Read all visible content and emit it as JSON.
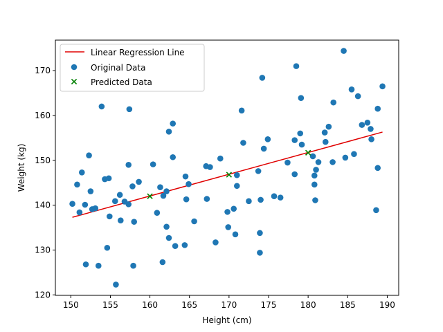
{
  "chart_data": {
    "type": "scatter",
    "xlabel": "Height (cm)",
    "ylabel": "Weight (kg)",
    "xlim": [
      148.05,
      191.45
    ],
    "ylim": [
      119.9,
      176.8
    ],
    "xticks": [
      150,
      155,
      160,
      165,
      170,
      175,
      180,
      185,
      190
    ],
    "yticks": [
      120,
      130,
      140,
      150,
      160,
      170
    ],
    "grid": false,
    "legend": {
      "position": "top-left",
      "entries": [
        "Linear Regression Line",
        "Original Data",
        "Predicted Data"
      ]
    },
    "series": [
      {
        "name": "Linear Regression Line",
        "kind": "line",
        "color": "#e00000",
        "points": [
          [
            150.2,
            137.3
          ],
          [
            189.4,
            156.3
          ]
        ]
      },
      {
        "name": "Original Data",
        "kind": "scatter",
        "color": "#1f77b4",
        "points": [
          [
            150.2,
            140.3
          ],
          [
            150.8,
            144.6
          ],
          [
            151.1,
            138.4
          ],
          [
            151.4,
            147.3
          ],
          [
            151.8,
            140.1
          ],
          [
            151.9,
            126.8
          ],
          [
            152.3,
            151.1
          ],
          [
            152.5,
            143.1
          ],
          [
            152.7,
            139.1
          ],
          [
            153.1,
            139.3
          ],
          [
            153.5,
            126.5
          ],
          [
            153.9,
            162.0
          ],
          [
            154.3,
            145.8
          ],
          [
            154.6,
            130.5
          ],
          [
            154.8,
            146.0
          ],
          [
            154.9,
            137.5
          ],
          [
            155.6,
            140.9
          ],
          [
            155.7,
            122.3
          ],
          [
            156.2,
            142.3
          ],
          [
            156.3,
            136.6
          ],
          [
            156.8,
            140.8
          ],
          [
            157.3,
            140.2
          ],
          [
            157.3,
            149.0
          ],
          [
            157.4,
            161.4
          ],
          [
            157.8,
            144.2
          ],
          [
            157.9,
            126.5
          ],
          [
            158.0,
            136.3
          ],
          [
            158.6,
            145.2
          ],
          [
            160.4,
            149.1
          ],
          [
            160.9,
            138.3
          ],
          [
            161.3,
            144.0
          ],
          [
            161.6,
            127.3
          ],
          [
            161.7,
            142.1
          ],
          [
            162.1,
            143.1
          ],
          [
            162.1,
            135.2
          ],
          [
            162.4,
            132.7
          ],
          [
            162.4,
            156.4
          ],
          [
            162.9,
            158.2
          ],
          [
            162.9,
            150.7
          ],
          [
            163.2,
            130.9
          ],
          [
            164.4,
            131.1
          ],
          [
            164.5,
            146.4
          ],
          [
            164.6,
            141.3
          ],
          [
            164.9,
            144.7
          ],
          [
            165.6,
            136.4
          ],
          [
            167.1,
            148.7
          ],
          [
            167.2,
            141.4
          ],
          [
            167.6,
            148.5
          ],
          [
            168.3,
            131.7
          ],
          [
            168.9,
            150.4
          ],
          [
            169.8,
            138.5
          ],
          [
            169.9,
            135.1
          ],
          [
            170.6,
            139.2
          ],
          [
            170.8,
            133.5
          ],
          [
            171.0,
            146.7
          ],
          [
            171.0,
            144.3
          ],
          [
            171.6,
            161.1
          ],
          [
            171.8,
            153.9
          ],
          [
            172.5,
            140.9
          ],
          [
            173.7,
            147.6
          ],
          [
            173.9,
            129.4
          ],
          [
            173.9,
            133.8
          ],
          [
            174.0,
            141.2
          ],
          [
            174.2,
            168.4
          ],
          [
            174.4,
            152.6
          ],
          [
            174.9,
            154.7
          ],
          [
            175.7,
            142.0
          ],
          [
            176.5,
            141.7
          ],
          [
            177.4,
            149.5
          ],
          [
            178.3,
            146.9
          ],
          [
            178.3,
            154.5
          ],
          [
            178.5,
            171.0
          ],
          [
            179.0,
            156.0
          ],
          [
            179.1,
            163.9
          ],
          [
            179.2,
            153.5
          ],
          [
            180.6,
            150.9
          ],
          [
            180.8,
            146.6
          ],
          [
            180.8,
            144.6
          ],
          [
            180.9,
            141.1
          ],
          [
            181.0,
            147.9
          ],
          [
            181.3,
            149.6
          ],
          [
            182.1,
            156.2
          ],
          [
            182.2,
            154.1
          ],
          [
            182.6,
            157.5
          ],
          [
            183.1,
            149.6
          ],
          [
            183.2,
            162.9
          ],
          [
            184.5,
            174.4
          ],
          [
            184.7,
            150.6
          ],
          [
            185.5,
            165.8
          ],
          [
            185.8,
            151.4
          ],
          [
            186.3,
            164.3
          ],
          [
            186.8,
            157.9
          ],
          [
            187.5,
            158.4
          ],
          [
            187.9,
            157.0
          ],
          [
            188.0,
            154.7
          ],
          [
            188.6,
            138.9
          ],
          [
            188.8,
            161.5
          ],
          [
            188.8,
            148.3
          ],
          [
            189.4,
            166.5
          ]
        ]
      },
      {
        "name": "Predicted Data",
        "kind": "scatter",
        "marker": "x",
        "color": "#008000",
        "points": [
          [
            160.0,
            142.0
          ],
          [
            170.0,
            146.8
          ],
          [
            180.0,
            151.7
          ]
        ]
      }
    ]
  }
}
